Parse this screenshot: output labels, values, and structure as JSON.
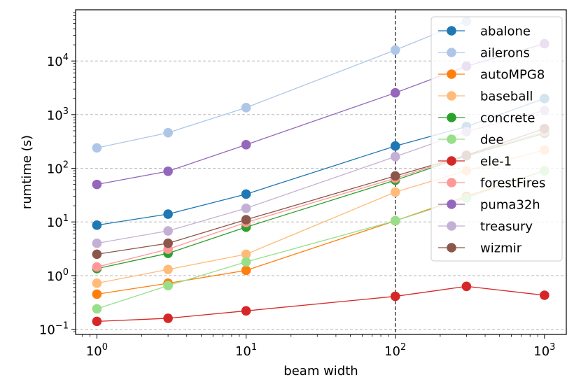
{
  "chart_data": {
    "type": "line",
    "xscale": "log",
    "yscale": "log",
    "xlabel": "beam width",
    "ylabel": "rumtime (s)",
    "xlim": [
      0.72,
      1400
    ],
    "ylim": [
      0.08,
      90000
    ],
    "x_ticks": [
      {
        "value": 1,
        "base": "10",
        "exp": "0"
      },
      {
        "value": 10,
        "base": "10",
        "exp": "1"
      },
      {
        "value": 100,
        "base": "10",
        "exp": "2"
      },
      {
        "value": 1000,
        "base": "10",
        "exp": "3"
      }
    ],
    "y_ticks": [
      {
        "value": 0.1,
        "base": "10",
        "exp": "−1"
      },
      {
        "value": 1,
        "base": "10",
        "exp": "0"
      },
      {
        "value": 10,
        "base": "10",
        "exp": "1"
      },
      {
        "value": 100,
        "base": "10",
        "exp": "2"
      },
      {
        "value": 1000,
        "base": "10",
        "exp": "3"
      },
      {
        "value": 10000,
        "base": "10",
        "exp": "4"
      }
    ],
    "vline_x": 100,
    "grid": "horizontal dashed at y major ticks",
    "legend_position": "top-right",
    "x": [
      1,
      3,
      10,
      100,
      300,
      1000
    ],
    "series": [
      {
        "name": "abalone",
        "color": "#1f77b4",
        "values": [
          8.7,
          14,
          33,
          260,
          600,
          2000
        ]
      },
      {
        "name": "ailerons",
        "color": "#aec7e8",
        "values": [
          240,
          460,
          1350,
          16000,
          55000,
          null
        ]
      },
      {
        "name": "autoMPG8",
        "color": "#ff7f0e",
        "values": [
          0.45,
          0.72,
          1.25,
          10.5,
          30,
          90
        ]
      },
      {
        "name": "baseball",
        "color": "#ffbb78",
        "values": [
          0.72,
          1.3,
          2.5,
          36,
          90,
          220
        ]
      },
      {
        "name": "concrete",
        "color": "#2ca02c",
        "values": [
          1.35,
          2.6,
          8,
          60,
          170,
          450
        ]
      },
      {
        "name": "dee",
        "color": "#98df8a",
        "values": [
          0.24,
          0.65,
          1.8,
          10.5,
          28,
          90
        ]
      },
      {
        "name": "ele-1",
        "color": "#d62728",
        "values": [
          0.14,
          0.16,
          0.22,
          0.41,
          0.63,
          0.43
        ]
      },
      {
        "name": "forestFires",
        "color": "#ff9896",
        "values": [
          1.45,
          3.1,
          9.8,
          65,
          175,
          480
        ]
      },
      {
        "name": "puma32h",
        "color": "#9467bd",
        "values": [
          50,
          88,
          275,
          2550,
          8000,
          21000
        ]
      },
      {
        "name": "treasury",
        "color": "#c5b0d5",
        "values": [
          4,
          6.8,
          18,
          165,
          480,
          1200
        ]
      },
      {
        "name": "wizmir",
        "color": "#8c564b",
        "values": [
          2.5,
          4,
          11,
          72,
          175,
          550
        ]
      }
    ]
  }
}
